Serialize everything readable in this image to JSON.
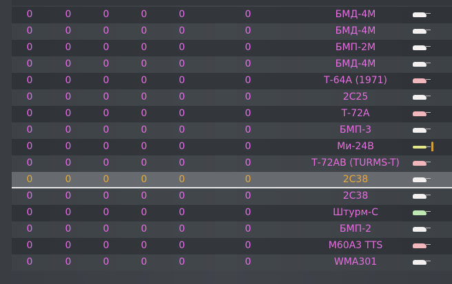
{
  "columns_count": 6,
  "rows": [
    {
      "values": [
        "0",
        "0",
        "0",
        "0",
        "0",
        "0"
      ],
      "vehicle": "БМД-4М",
      "icon": "tank-icon",
      "icon_color": "white"
    },
    {
      "values": [
        "0",
        "0",
        "0",
        "0",
        "0",
        "0"
      ],
      "vehicle": "БМД-4М",
      "icon": "tank-icon",
      "icon_color": "white"
    },
    {
      "values": [
        "0",
        "0",
        "0",
        "0",
        "0",
        "0"
      ],
      "vehicle": "БМП-2М",
      "icon": "tank-icon",
      "icon_color": "white"
    },
    {
      "values": [
        "0",
        "0",
        "0",
        "0",
        "0",
        "0"
      ],
      "vehicle": "БМД-4М",
      "icon": "tank-icon",
      "icon_color": "white"
    },
    {
      "values": [
        "0",
        "0",
        "0",
        "0",
        "0",
        "0"
      ],
      "vehicle": "Т-64А (1971)",
      "icon": "tank-icon",
      "icon_color": "pink"
    },
    {
      "values": [
        "0",
        "0",
        "0",
        "0",
        "0",
        "0"
      ],
      "vehicle": "2С25",
      "icon": "tank-icon",
      "icon_color": "white"
    },
    {
      "values": [
        "0",
        "0",
        "0",
        "0",
        "0",
        "0"
      ],
      "vehicle": "Т-72А",
      "icon": "tank-icon",
      "icon_color": "pink"
    },
    {
      "values": [
        "0",
        "0",
        "0",
        "0",
        "0",
        "0"
      ],
      "vehicle": "БМП-3",
      "icon": "tank-icon",
      "icon_color": "white"
    },
    {
      "values": [
        "0",
        "0",
        "0",
        "0",
        "0",
        "0"
      ],
      "vehicle": "Ми-24В",
      "icon": "helicopter-icon",
      "icon_color": "heli",
      "ammo": true
    },
    {
      "values": [
        "0",
        "0",
        "0",
        "0",
        "0",
        "0"
      ],
      "vehicle": "Т-72АВ (TURMS-T)",
      "icon": "tank-icon",
      "icon_color": "pink"
    },
    {
      "values": [
        "0",
        "0",
        "0",
        "0",
        "0",
        "0"
      ],
      "vehicle": "2С38",
      "icon": "tank-icon",
      "icon_color": "white",
      "selected": true
    },
    {
      "values": [
        "0",
        "0",
        "0",
        "0",
        "0",
        "0"
      ],
      "vehicle": "2С38",
      "icon": "tank-icon",
      "icon_color": "white"
    },
    {
      "values": [
        "0",
        "0",
        "0",
        "0",
        "0",
        "0"
      ],
      "vehicle": "Штурм-С",
      "icon": "tank-icon",
      "icon_color": "green"
    },
    {
      "values": [
        "0",
        "0",
        "0",
        "0",
        "0",
        "0"
      ],
      "vehicle": "БМП-2",
      "icon": "tank-icon",
      "icon_color": "white"
    },
    {
      "values": [
        "0",
        "0",
        "0",
        "0",
        "0",
        "0"
      ],
      "vehicle": "M60A3 TTS",
      "icon": "tank-icon",
      "icon_color": "pink"
    },
    {
      "values": [
        "0",
        "0",
        "0",
        "0",
        "0",
        "0"
      ],
      "vehicle": "WMA301",
      "icon": "tank-icon",
      "icon_color": "white"
    }
  ],
  "colors": {
    "text": "#e66ee0",
    "selected_text": "#e4aa3a",
    "selected_row": "#676b6f"
  }
}
